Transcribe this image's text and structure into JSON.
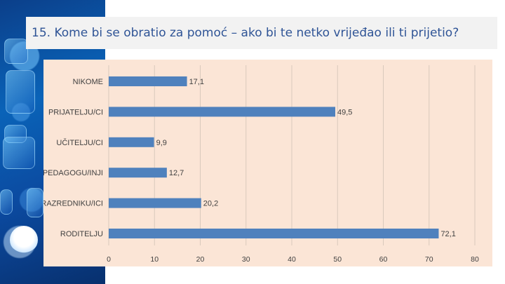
{
  "slide": {
    "title": "15. Kome bi se obratio za pomoć – ako bi te netko vrijeđao ili ti prijetio?"
  },
  "colors": {
    "bar": "#4f81bd",
    "panel": "#fbe5d6",
    "title": "#2f5496",
    "grid": "#d9c9bc"
  },
  "chart_data": {
    "type": "bar",
    "orientation": "horizontal",
    "categories": [
      "NIKOME",
      "PRIJATELJU/CI",
      "UČITELJU/CI",
      "PEDAGOGU/INJI",
      "RAZREDNIKU/ICI",
      "RODITELJU"
    ],
    "values": [
      17.1,
      49.5,
      9.9,
      12.7,
      20.2,
      72.1
    ],
    "value_labels": [
      "17,1",
      "49,5",
      "9,9",
      "12,7",
      "20,2",
      "72,1"
    ],
    "xlim": [
      0,
      80
    ],
    "xticks": [
      0,
      10,
      20,
      30,
      40,
      50,
      60,
      70,
      80
    ],
    "grid": true,
    "legend": "none"
  }
}
